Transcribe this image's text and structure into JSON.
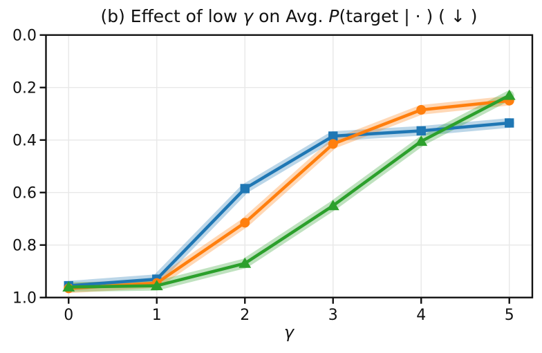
{
  "chart_data": {
    "type": "line",
    "title": "(b) Effect of low γ on Avg. P(target | · ) ( ↓ )",
    "title_parts": [
      "(b) Effect of low ",
      "γ",
      " on Avg. ",
      "P",
      "(target | · ) ( ↓ )"
    ],
    "xlabel": "γ",
    "ylabel": "",
    "x": [
      0,
      1,
      2,
      3,
      4,
      5
    ],
    "xticks": [
      "0",
      "1",
      "2",
      "3",
      "4",
      "5"
    ],
    "yticks": [
      "0.0",
      "0.2",
      "0.4",
      "0.6",
      "0.8",
      "1.0"
    ],
    "xlim": [
      -0.257,
      5.261
    ],
    "ylim": [
      1.0,
      0.0
    ],
    "y_axis_inverted": true,
    "grid": true,
    "legend_position": "none",
    "grid_color": "#e8e8e8",
    "axis_color": "#111111",
    "series": [
      {
        "name": "blue-squares",
        "marker": "square",
        "color": "#1f77b4",
        "band_alpha": 0.3,
        "values": [
          0.955,
          0.93,
          0.585,
          0.385,
          0.365,
          0.335
        ]
      },
      {
        "name": "orange-circles",
        "marker": "circle",
        "color": "#ff7f0e",
        "band_alpha": 0.3,
        "values": [
          0.965,
          0.945,
          0.715,
          0.415,
          0.285,
          0.25
        ]
      },
      {
        "name": "green-triangles",
        "marker": "triangle",
        "color": "#2ca02c",
        "band_alpha": 0.3,
        "values": [
          0.96,
          0.955,
          0.87,
          0.65,
          0.405,
          0.23
        ]
      }
    ]
  }
}
